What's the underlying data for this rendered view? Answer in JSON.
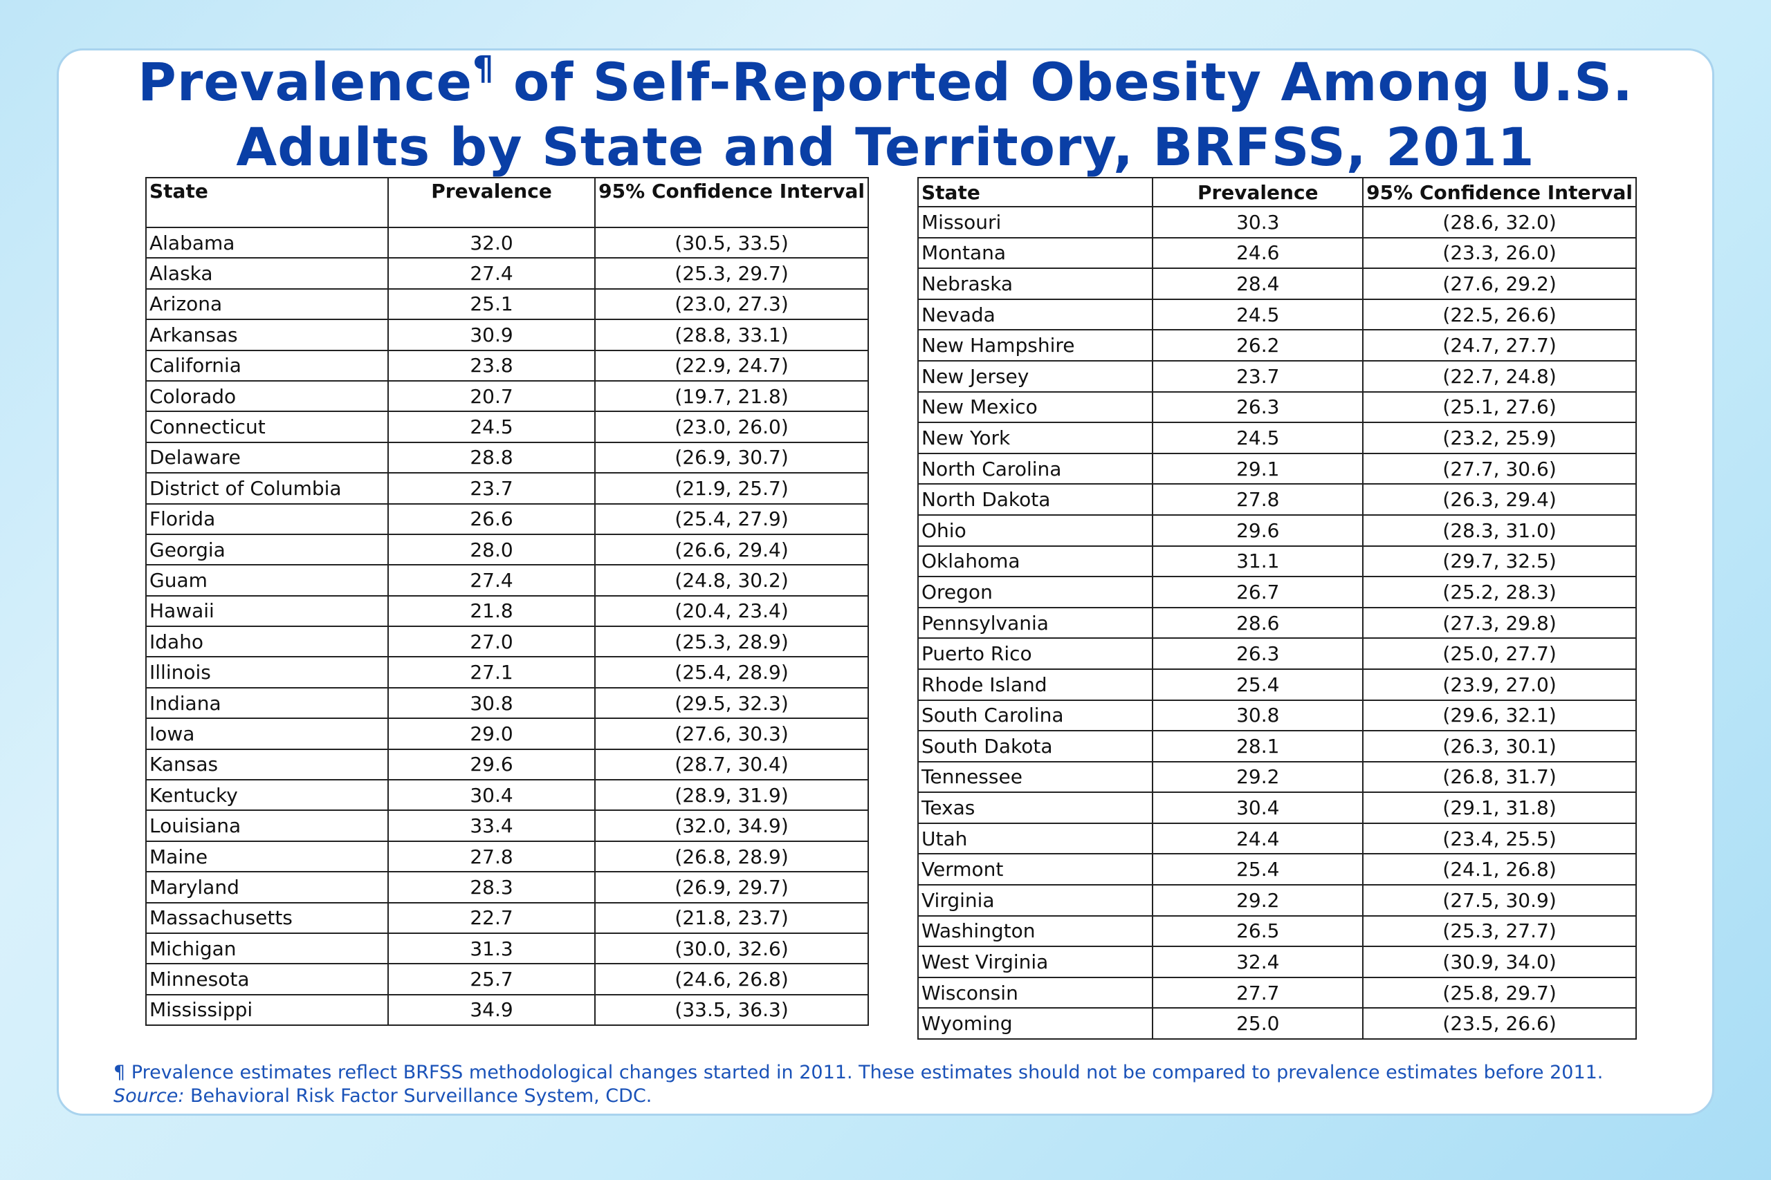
{
  "title": {
    "text_before": "Prevalence",
    "mark": "¶",
    "text_after": " of Self-Reported Obesity Among U.S.",
    "line2": "Adults by State and Territory, BRFSS, 2011"
  },
  "table_headers": {
    "state": "State",
    "prevalence": "Prevalence",
    "ci": "95% Confidence Interval"
  },
  "left_rows": [
    {
      "state": "Alabama",
      "prevalence": "32.0",
      "ci": "(30.5, 33.5)"
    },
    {
      "state": "Alaska",
      "prevalence": "27.4",
      "ci": "(25.3, 29.7)"
    },
    {
      "state": "Arizona",
      "prevalence": "25.1",
      "ci": "(23.0, 27.3)"
    },
    {
      "state": "Arkansas",
      "prevalence": "30.9",
      "ci": "(28.8, 33.1)"
    },
    {
      "state": "California",
      "prevalence": "23.8",
      "ci": "(22.9, 24.7)"
    },
    {
      "state": "Colorado",
      "prevalence": "20.7",
      "ci": "(19.7, 21.8)"
    },
    {
      "state": "Connecticut",
      "prevalence": "24.5",
      "ci": "(23.0, 26.0)"
    },
    {
      "state": "Delaware",
      "prevalence": "28.8",
      "ci": "(26.9, 30.7)"
    },
    {
      "state": "District of Columbia",
      "prevalence": "23.7",
      "ci": "(21.9, 25.7)"
    },
    {
      "state": "Florida",
      "prevalence": "26.6",
      "ci": "(25.4, 27.9)"
    },
    {
      "state": "Georgia",
      "prevalence": "28.0",
      "ci": "(26.6, 29.4)"
    },
    {
      "state": "Guam",
      "prevalence": "27.4",
      "ci": "(24.8, 30.2)"
    },
    {
      "state": "Hawaii",
      "prevalence": "21.8",
      "ci": "(20.4, 23.4)"
    },
    {
      "state": "Idaho",
      "prevalence": "27.0",
      "ci": "(25.3, 28.9)"
    },
    {
      "state": "Illinois",
      "prevalence": "27.1",
      "ci": "(25.4, 28.9)"
    },
    {
      "state": "Indiana",
      "prevalence": "30.8",
      "ci": "(29.5, 32.3)"
    },
    {
      "state": "Iowa",
      "prevalence": "29.0",
      "ci": "(27.6, 30.3)"
    },
    {
      "state": "Kansas",
      "prevalence": "29.6",
      "ci": "(28.7, 30.4)"
    },
    {
      "state": "Kentucky",
      "prevalence": "30.4",
      "ci": "(28.9, 31.9)"
    },
    {
      "state": "Louisiana",
      "prevalence": "33.4",
      "ci": "(32.0, 34.9)"
    },
    {
      "state": "Maine",
      "prevalence": "27.8",
      "ci": "(26.8, 28.9)"
    },
    {
      "state": "Maryland",
      "prevalence": "28.3",
      "ci": "(26.9, 29.7)"
    },
    {
      "state": "Massachusetts",
      "prevalence": "22.7",
      "ci": "(21.8, 23.7)"
    },
    {
      "state": "Michigan",
      "prevalence": "31.3",
      "ci": "(30.0, 32.6)"
    },
    {
      "state": "Minnesota",
      "prevalence": "25.7",
      "ci": "(24.6, 26.8)"
    },
    {
      "state": "Mississippi",
      "prevalence": "34.9",
      "ci": "(33.5, 36.3)"
    }
  ],
  "right_rows": [
    {
      "state": "Missouri",
      "prevalence": "30.3",
      "ci": "(28.6, 32.0)"
    },
    {
      "state": "Montana",
      "prevalence": "24.6",
      "ci": "(23.3, 26.0)"
    },
    {
      "state": "Nebraska",
      "prevalence": "28.4",
      "ci": "(27.6, 29.2)"
    },
    {
      "state": "Nevada",
      "prevalence": "24.5",
      "ci": "(22.5, 26.6)"
    },
    {
      "state": "New Hampshire",
      "prevalence": "26.2",
      "ci": "(24.7, 27.7)"
    },
    {
      "state": "New Jersey",
      "prevalence": "23.7",
      "ci": "(22.7, 24.8)"
    },
    {
      "state": "New Mexico",
      "prevalence": "26.3",
      "ci": "(25.1, 27.6)"
    },
    {
      "state": "New York",
      "prevalence": "24.5",
      "ci": "(23.2, 25.9)"
    },
    {
      "state": "North Carolina",
      "prevalence": "29.1",
      "ci": "(27.7, 30.6)"
    },
    {
      "state": "North Dakota",
      "prevalence": "27.8",
      "ci": "(26.3, 29.4)"
    },
    {
      "state": "Ohio",
      "prevalence": "29.6",
      "ci": "(28.3, 31.0)"
    },
    {
      "state": "Oklahoma",
      "prevalence": "31.1",
      "ci": "(29.7, 32.5)"
    },
    {
      "state": "Oregon",
      "prevalence": "26.7",
      "ci": "(25.2, 28.3)"
    },
    {
      "state": "Pennsylvania",
      "prevalence": "28.6",
      "ci": "(27.3, 29.8)"
    },
    {
      "state": "Puerto Rico",
      "prevalence": "26.3",
      "ci": "(25.0, 27.7)"
    },
    {
      "state": "Rhode Island",
      "prevalence": "25.4",
      "ci": "(23.9, 27.0)"
    },
    {
      "state": "South Carolina",
      "prevalence": "30.8",
      "ci": "(29.6, 32.1)"
    },
    {
      "state": "South Dakota",
      "prevalence": "28.1",
      "ci": "(26.3, 30.1)"
    },
    {
      "state": "Tennessee",
      "prevalence": "29.2",
      "ci": "(26.8, 31.7)"
    },
    {
      "state": "Texas",
      "prevalence": "30.4",
      "ci": "(29.1, 31.8)"
    },
    {
      "state": "Utah",
      "prevalence": "24.4",
      "ci": "(23.4, 25.5)"
    },
    {
      "state": "Vermont",
      "prevalence": "25.4",
      "ci": "(24.1, 26.8)"
    },
    {
      "state": "Virginia",
      "prevalence": "29.2",
      "ci": "(27.5, 30.9)"
    },
    {
      "state": "Washington",
      "prevalence": "26.5",
      "ci": "(25.3, 27.7)"
    },
    {
      "state": "West Virginia",
      "prevalence": "32.4",
      "ci": "(30.9, 34.0)"
    },
    {
      "state": "Wisconsin",
      "prevalence": "27.7",
      "ci": "(25.8, 29.7)"
    },
    {
      "state": "Wyoming",
      "prevalence": "25.0",
      "ci": "(23.5, 26.6)"
    }
  ],
  "footnote": {
    "mark": "¶",
    "text": " Prevalence estimates reflect BRFSS methodological changes started in 2011. These estimates should not be compared to prevalence estimates before 2011.",
    "source_label": "Source:",
    "source_text": " Behavioral Risk Factor Surveillance System, CDC."
  },
  "colors": {
    "title": "#0a3fa6",
    "footnote": "#1a52b8",
    "background": "#c9ecfa",
    "card_border": "#a9d3ee"
  }
}
